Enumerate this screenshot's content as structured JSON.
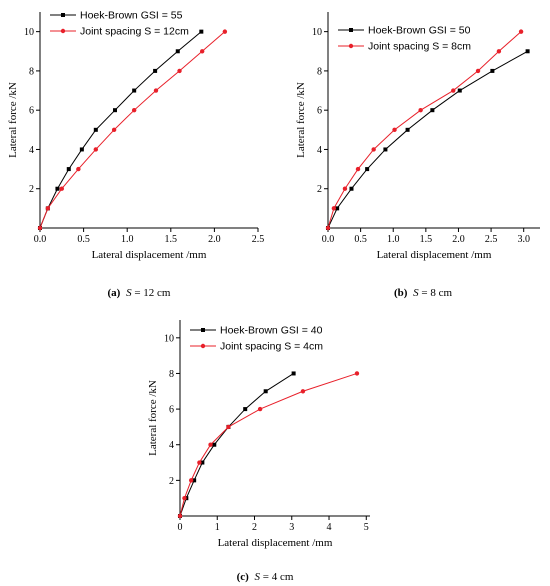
{
  "figure": {
    "panels": [
      {
        "id": "a",
        "caption_letter": "(a)",
        "caption_var": "S",
        "caption_rest": " = 12 cm",
        "xlabel": "Lateral displacement /mm",
        "ylabel": "Lateral force /kN",
        "xlim": [
          0,
          2.5
        ],
        "ylim": [
          0,
          11
        ],
        "xticks": [
          0.0,
          0.5,
          1.0,
          1.5,
          2.0,
          2.5
        ],
        "xtick_labels": [
          "0.0",
          "0.5",
          "1.0",
          "1.5",
          "2.0",
          "2.5"
        ],
        "yticks": [
          2,
          4,
          6,
          8,
          10
        ],
        "ytick_labels": [
          "2",
          "4",
          "6",
          "8",
          "10"
        ],
        "legend": "top-left"
      },
      {
        "id": "b",
        "caption_letter": "(b)",
        "caption_var": "S",
        "caption_rest": " = 8 cm",
        "xlabel": "Lateral displacement /mm",
        "ylabel": "Lateral force /kN",
        "xlim": [
          0,
          3.25
        ],
        "ylim": [
          0,
          11
        ],
        "xticks": [
          0.0,
          0.5,
          1.0,
          1.5,
          2.0,
          2.5,
          3.0
        ],
        "xtick_labels": [
          "0.0",
          "0.5",
          "1.0",
          "1.5",
          "2.0",
          "2.5",
          "3.0"
        ],
        "yticks": [
          2,
          4,
          6,
          8,
          10
        ],
        "ytick_labels": [
          "2",
          "4",
          "6",
          "8",
          "10"
        ],
        "legend": "top-left"
      },
      {
        "id": "c",
        "caption_letter": "(c)",
        "caption_var": "S",
        "caption_rest": " = 4 cm",
        "xlabel": "Lateral displacement /mm",
        "ylabel": "Lateral force /kN",
        "xlim": [
          0,
          5.1
        ],
        "ylim": [
          0,
          11
        ],
        "xticks": [
          0,
          1,
          2,
          3,
          4,
          5
        ],
        "xtick_labels": [
          "0",
          "1",
          "2",
          "3",
          "4",
          "5"
        ],
        "yticks": [
          2,
          4,
          6,
          8,
          10
        ],
        "ytick_labels": [
          "2",
          "4",
          "6",
          "8",
          "10"
        ],
        "legend": "top-left"
      }
    ]
  },
  "chart_data": [
    {
      "type": "line",
      "xlabel": "Lateral displacement /mm",
      "ylabel": "Lateral force /kN",
      "xlim": [
        0,
        2.5
      ],
      "ylim": [
        0,
        11
      ],
      "grid": false,
      "legend_position": "top-left",
      "series": [
        {
          "name": "Hoek-Brown GSI = 55",
          "color": "#000000",
          "marker": "square",
          "x": [
            0,
            0.09,
            0.2,
            0.33,
            0.48,
            0.64,
            0.86,
            1.08,
            1.32,
            1.58,
            1.85
          ],
          "y": [
            0,
            1,
            2,
            3,
            4,
            5,
            6,
            7,
            8,
            9,
            10
          ]
        },
        {
          "name": "Joint spacing S = 12cm",
          "color": "#e8202a",
          "marker": "circle",
          "x": [
            0,
            0.09,
            0.25,
            0.44,
            0.64,
            0.85,
            1.08,
            1.33,
            1.6,
            1.86,
            2.12
          ],
          "y": [
            0,
            1,
            2,
            3,
            4,
            5,
            6,
            7,
            8,
            9,
            10
          ]
        }
      ]
    },
    {
      "type": "line",
      "xlabel": "Lateral displacement /mm",
      "ylabel": "Lateral force /kN",
      "xlim": [
        0,
        3.25
      ],
      "ylim": [
        0,
        11
      ],
      "grid": false,
      "legend_position": "top-left",
      "series": [
        {
          "name": "Hoek-Brown GSI = 50",
          "color": "#000000",
          "marker": "square",
          "x": [
            0,
            0.14,
            0.36,
            0.6,
            0.88,
            1.22,
            1.6,
            2.02,
            2.52,
            3.06
          ],
          "y": [
            0,
            1,
            2,
            3,
            4,
            5,
            6,
            7,
            8,
            9
          ]
        },
        {
          "name": "Joint spacing S = 8cm",
          "color": "#e8202a",
          "marker": "circle",
          "x": [
            0,
            0.09,
            0.26,
            0.46,
            0.7,
            1.02,
            1.42,
            1.92,
            2.3,
            2.62,
            2.96
          ],
          "y": [
            0,
            1,
            2,
            3,
            4,
            5,
            6,
            7,
            8,
            9,
            10
          ]
        }
      ]
    },
    {
      "type": "line",
      "xlabel": "Lateral displacement /mm",
      "ylabel": "Lateral force /kN",
      "xlim": [
        0,
        5.1
      ],
      "ylim": [
        0,
        11
      ],
      "grid": false,
      "legend_position": "top-left",
      "series": [
        {
          "name": "Hoek-Brown GSI = 40",
          "color": "#000000",
          "marker": "square",
          "x": [
            0,
            0.17,
            0.38,
            0.6,
            0.92,
            1.3,
            1.75,
            2.3,
            3.05
          ],
          "y": [
            0,
            1,
            2,
            3,
            4,
            5,
            6,
            7,
            8
          ]
        },
        {
          "name": "Joint spacing S = 4cm",
          "color": "#e8202a",
          "marker": "circle",
          "x": [
            0,
            0.12,
            0.3,
            0.52,
            0.82,
            1.3,
            2.15,
            3.3,
            4.75
          ],
          "y": [
            0,
            1,
            2,
            3,
            4,
            5,
            6,
            7,
            8
          ]
        }
      ]
    }
  ]
}
